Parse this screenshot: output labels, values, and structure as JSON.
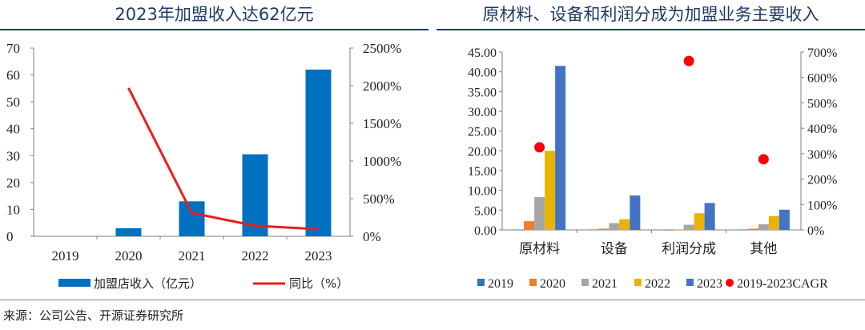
{
  "titles": {
    "left": "2023年加盟收入达62亿元",
    "right": "原材料、设备和利润分成为加盟业务主要收入"
  },
  "source": "来源：公司公告、开源证券研究所",
  "colors": {
    "title": "#1f3a66",
    "bar_blue": "#0070c0",
    "line_red": "#e8201c",
    "s2019": "#2e75b6",
    "s2020": "#ed7d31",
    "s2021": "#a5a5a5",
    "s2022": "#e8b400",
    "s2023": "#4472c4",
    "cagr": "#ff0000"
  },
  "chart_data": [
    {
      "type": "bar",
      "categories": [
        "2019",
        "2020",
        "2021",
        "2022",
        "2023"
      ],
      "series": [
        {
          "name": "加盟店收入（亿元）",
          "type": "bar",
          "axis": "left",
          "values": [
            0,
            3,
            13,
            30.5,
            62
          ]
        },
        {
          "name": "同比（%）",
          "type": "line",
          "axis": "right",
          "values": [
            null,
            1970,
            310,
            140,
            95
          ]
        }
      ],
      "y_left": {
        "min": 0,
        "max": 70,
        "step": 10,
        "ticks": [
          "0",
          "10",
          "20",
          "30",
          "40",
          "50",
          "60",
          "70"
        ]
      },
      "y_right": {
        "min": 0,
        "max": 2500,
        "step": 500,
        "ticks": [
          "0%",
          "500%",
          "1000%",
          "1500%",
          "2000%",
          "2500%"
        ]
      },
      "legend": [
        "加盟店收入（亿元）",
        "同比（%）"
      ],
      "legend_position": "bottom"
    },
    {
      "type": "bar",
      "categories": [
        "原材料",
        "设备",
        "利润分成",
        "其他"
      ],
      "series": [
        {
          "name": "2019",
          "values": [
            0.1,
            0.1,
            0.05,
            0.1
          ]
        },
        {
          "name": "2020",
          "values": [
            2.2,
            0.3,
            0.1,
            0.3
          ]
        },
        {
          "name": "2021",
          "values": [
            8.3,
            1.7,
            1.3,
            1.4
          ]
        },
        {
          "name": "2022",
          "values": [
            20.0,
            2.7,
            4.2,
            3.5
          ]
        },
        {
          "name": "2023",
          "values": [
            41.5,
            8.7,
            6.8,
            5.1
          ]
        },
        {
          "name": "2019-2023CAGR",
          "type": "scatter",
          "axis": "right",
          "values": [
            325,
            null,
            665,
            278
          ]
        }
      ],
      "y_left": {
        "min": 0,
        "max": 45,
        "step": 5,
        "ticks": [
          "0.00",
          "5.00",
          "10.00",
          "15.00",
          "20.00",
          "25.00",
          "30.00",
          "35.00",
          "40.00",
          "45.00"
        ]
      },
      "y_right": {
        "min": 0,
        "max": 700,
        "step": 100,
        "ticks": [
          "0%",
          "100%",
          "200%",
          "300%",
          "400%",
          "500%",
          "600%",
          "700%"
        ]
      },
      "legend": [
        "2019",
        "2020",
        "2021",
        "2022",
        "2023",
        "2019-2023CAGR"
      ],
      "legend_position": "bottom"
    }
  ]
}
